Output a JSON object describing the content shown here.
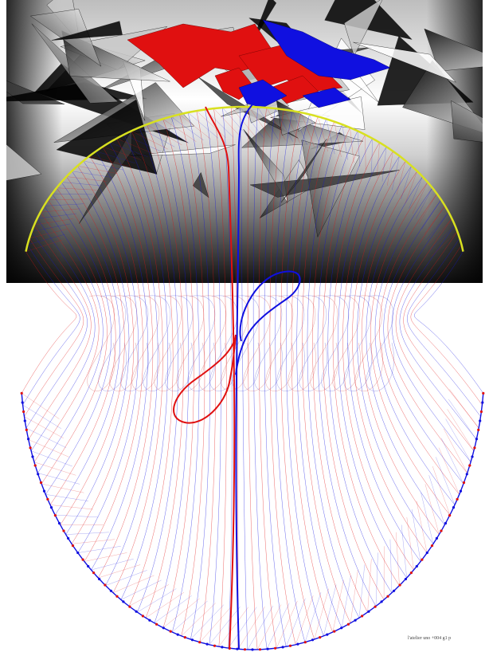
{
  "caption": "l'atelier uno +004 g1 p",
  "colors": {
    "red": "#e01010",
    "blue": "#1010e0",
    "yellow": "#d8e020",
    "black": "#000000",
    "dark_gray": "#3a3a3a",
    "light_gray": "#c8c8c8",
    "faint_red": "#e8a8a8",
    "faint_blue": "#a8a8e8",
    "white": "#ffffff"
  }
}
